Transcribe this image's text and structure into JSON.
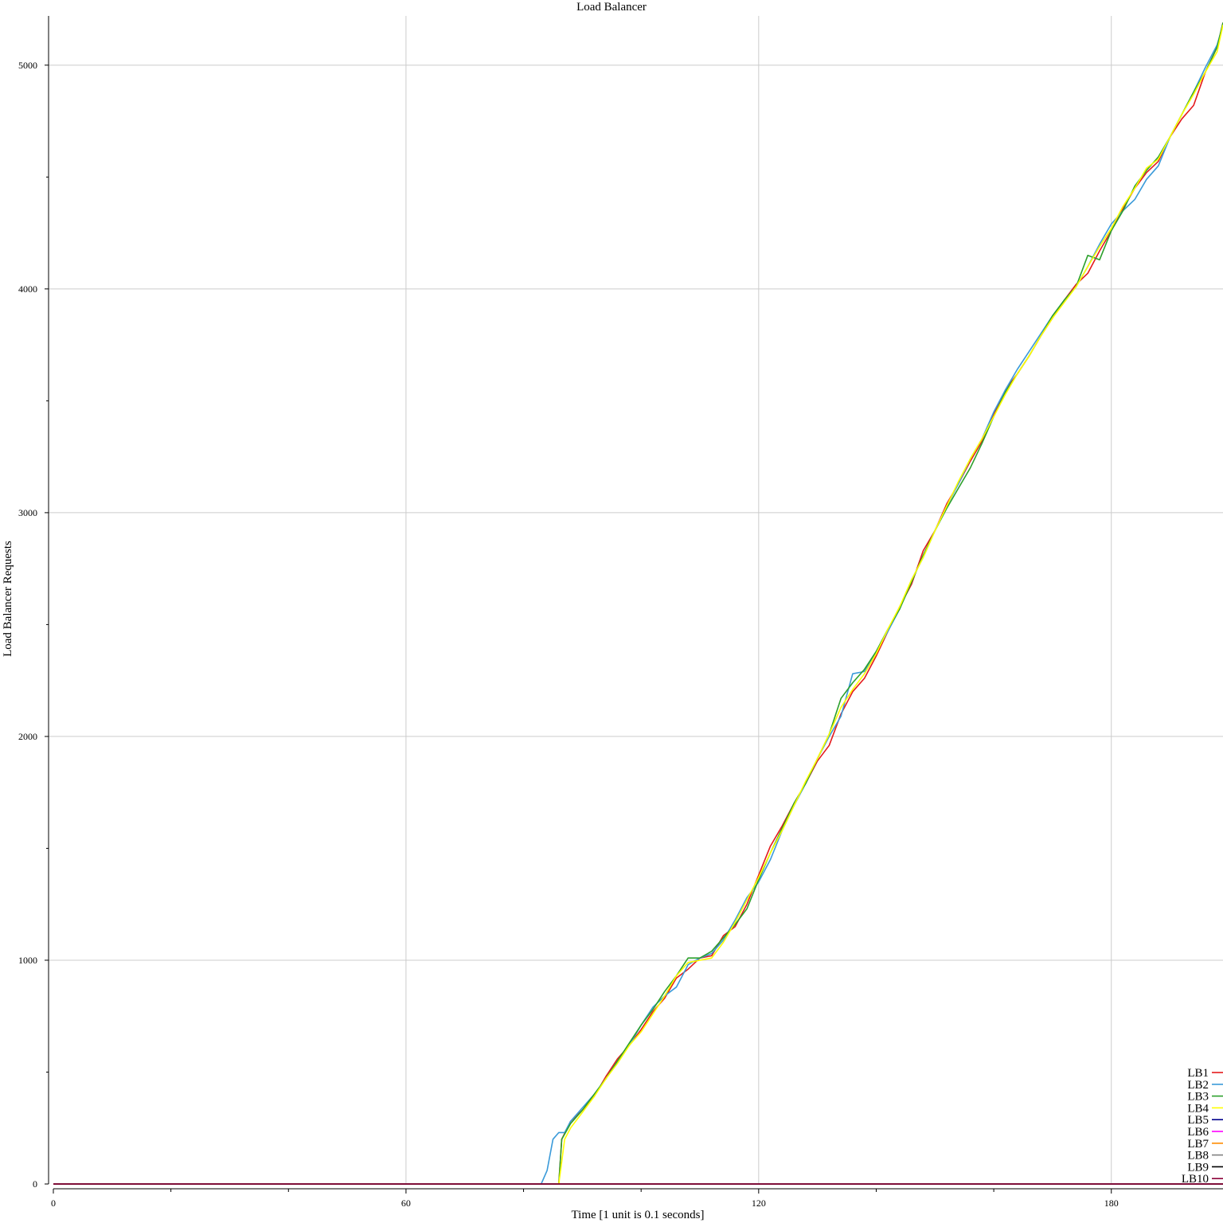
{
  "chart_data": {
    "type": "line",
    "title": "Load Balancer",
    "xlabel": "Time [1 unit is 0.1 seconds]",
    "ylabel": "Load Balancer Requests",
    "xlim": [
      0,
      199
    ],
    "ylim": [
      0,
      5220
    ],
    "xticks": [
      0,
      60,
      120,
      180
    ],
    "xticks_minor": [
      20,
      40,
      80,
      100,
      140,
      160
    ],
    "yticks": [
      0,
      1000,
      2000,
      3000,
      4000,
      5000
    ],
    "yticks_minor": [
      500,
      1500,
      2500,
      3500,
      4500
    ],
    "grid": true,
    "legend_position": "bottom-right",
    "series": [
      {
        "name": "LB1",
        "color": "#e41a1c",
        "points": [
          [
            0,
            0
          ],
          [
            86,
            0
          ],
          [
            86.5,
            200
          ],
          [
            88,
            280
          ],
          [
            90,
            330
          ],
          [
            92,
            390
          ],
          [
            94,
            480
          ],
          [
            96,
            560
          ],
          [
            98,
            620
          ],
          [
            100,
            690
          ],
          [
            102,
            770
          ],
          [
            104,
            830
          ],
          [
            106,
            920
          ],
          [
            108,
            960
          ],
          [
            110,
            1010
          ],
          [
            112,
            1020
          ],
          [
            114,
            1110
          ],
          [
            116,
            1150
          ],
          [
            118,
            1250
          ],
          [
            120,
            1380
          ],
          [
            122,
            1510
          ],
          [
            124,
            1600
          ],
          [
            126,
            1700
          ],
          [
            128,
            1790
          ],
          [
            130,
            1890
          ],
          [
            132,
            1960
          ],
          [
            134,
            2100
          ],
          [
            136,
            2200
          ],
          [
            138,
            2260
          ],
          [
            140,
            2360
          ],
          [
            142,
            2470
          ],
          [
            144,
            2580
          ],
          [
            146,
            2680
          ],
          [
            148,
            2830
          ],
          [
            150,
            2920
          ],
          [
            152,
            3040
          ],
          [
            154,
            3130
          ],
          [
            156,
            3230
          ],
          [
            158,
            3320
          ],
          [
            160,
            3440
          ],
          [
            162,
            3550
          ],
          [
            164,
            3620
          ],
          [
            166,
            3700
          ],
          [
            168,
            3790
          ],
          [
            170,
            3870
          ],
          [
            172,
            3950
          ],
          [
            174,
            4020
          ],
          [
            176,
            4070
          ],
          [
            178,
            4170
          ],
          [
            180,
            4260
          ],
          [
            182,
            4360
          ],
          [
            184,
            4450
          ],
          [
            186,
            4520
          ],
          [
            188,
            4570
          ],
          [
            190,
            4680
          ],
          [
            192,
            4760
          ],
          [
            194,
            4820
          ],
          [
            196,
            4970
          ],
          [
            198,
            5080
          ],
          [
            199,
            5190
          ]
        ]
      },
      {
        "name": "LB2",
        "color": "#3a9ad9",
        "points": [
          [
            0,
            0
          ],
          [
            83,
            0
          ],
          [
            84,
            60
          ],
          [
            85,
            200
          ],
          [
            86,
            230
          ],
          [
            87,
            230
          ],
          [
            88,
            280
          ],
          [
            90,
            340
          ],
          [
            92,
            400
          ],
          [
            94,
            470
          ],
          [
            96,
            550
          ],
          [
            98,
            620
          ],
          [
            100,
            710
          ],
          [
            102,
            790
          ],
          [
            104,
            840
          ],
          [
            106,
            880
          ],
          [
            108,
            980
          ],
          [
            110,
            1010
          ],
          [
            112,
            1030
          ],
          [
            114,
            1090
          ],
          [
            116,
            1180
          ],
          [
            118,
            1280
          ],
          [
            120,
            1350
          ],
          [
            122,
            1450
          ],
          [
            124,
            1580
          ],
          [
            126,
            1690
          ],
          [
            128,
            1790
          ],
          [
            130,
            1900
          ],
          [
            132,
            2000
          ],
          [
            134,
            2090
          ],
          [
            136,
            2280
          ],
          [
            138,
            2290
          ],
          [
            140,
            2380
          ],
          [
            142,
            2470
          ],
          [
            144,
            2570
          ],
          [
            146,
            2700
          ],
          [
            148,
            2800
          ],
          [
            150,
            2920
          ],
          [
            152,
            3030
          ],
          [
            154,
            3130
          ],
          [
            156,
            3240
          ],
          [
            158,
            3330
          ],
          [
            160,
            3450
          ],
          [
            162,
            3550
          ],
          [
            164,
            3640
          ],
          [
            166,
            3720
          ],
          [
            168,
            3800
          ],
          [
            170,
            3880
          ],
          [
            172,
            3950
          ],
          [
            174,
            4010
          ],
          [
            176,
            4100
          ],
          [
            178,
            4200
          ],
          [
            180,
            4290
          ],
          [
            182,
            4350
          ],
          [
            184,
            4400
          ],
          [
            186,
            4490
          ],
          [
            188,
            4550
          ],
          [
            190,
            4680
          ],
          [
            192,
            4780
          ],
          [
            194,
            4880
          ],
          [
            196,
            4990
          ],
          [
            198,
            5090
          ],
          [
            199,
            5180
          ]
        ]
      },
      {
        "name": "LB3",
        "color": "#2ca02c",
        "points": [
          [
            0,
            0
          ],
          [
            86,
            0
          ],
          [
            86.5,
            200
          ],
          [
            88,
            270
          ],
          [
            90,
            330
          ],
          [
            92,
            400
          ],
          [
            94,
            470
          ],
          [
            96,
            550
          ],
          [
            98,
            630
          ],
          [
            100,
            710
          ],
          [
            102,
            780
          ],
          [
            104,
            860
          ],
          [
            106,
            930
          ],
          [
            108,
            1010
          ],
          [
            110,
            1010
          ],
          [
            112,
            1040
          ],
          [
            114,
            1100
          ],
          [
            116,
            1160
          ],
          [
            118,
            1230
          ],
          [
            120,
            1360
          ],
          [
            122,
            1480
          ],
          [
            124,
            1590
          ],
          [
            126,
            1700
          ],
          [
            128,
            1790
          ],
          [
            130,
            1900
          ],
          [
            132,
            2010
          ],
          [
            134,
            2170
          ],
          [
            136,
            2240
          ],
          [
            138,
            2300
          ],
          [
            140,
            2380
          ],
          [
            142,
            2480
          ],
          [
            144,
            2570
          ],
          [
            146,
            2690
          ],
          [
            148,
            2810
          ],
          [
            150,
            2920
          ],
          [
            152,
            3020
          ],
          [
            154,
            3110
          ],
          [
            156,
            3200
          ],
          [
            158,
            3310
          ],
          [
            160,
            3430
          ],
          [
            162,
            3540
          ],
          [
            164,
            3620
          ],
          [
            166,
            3700
          ],
          [
            168,
            3790
          ],
          [
            170,
            3880
          ],
          [
            172,
            3950
          ],
          [
            174,
            4010
          ],
          [
            176,
            4150
          ],
          [
            178,
            4130
          ],
          [
            180,
            4260
          ],
          [
            182,
            4350
          ],
          [
            184,
            4460
          ],
          [
            186,
            4530
          ],
          [
            188,
            4590
          ],
          [
            190,
            4680
          ],
          [
            192,
            4780
          ],
          [
            194,
            4880
          ],
          [
            196,
            4970
          ],
          [
            198,
            5080
          ],
          [
            199,
            5190
          ]
        ]
      },
      {
        "name": "LB4",
        "color": "#ffff00",
        "points": [
          [
            0,
            0
          ],
          [
            86,
            0
          ],
          [
            87,
            200
          ],
          [
            88,
            250
          ],
          [
            90,
            320
          ],
          [
            92,
            390
          ],
          [
            94,
            470
          ],
          [
            96,
            540
          ],
          [
            98,
            620
          ],
          [
            100,
            680
          ],
          [
            102,
            760
          ],
          [
            104,
            840
          ],
          [
            106,
            930
          ],
          [
            108,
            990
          ],
          [
            110,
            1000
          ],
          [
            112,
            1010
          ],
          [
            114,
            1080
          ],
          [
            116,
            1170
          ],
          [
            118,
            1270
          ],
          [
            120,
            1370
          ],
          [
            122,
            1480
          ],
          [
            124,
            1580
          ],
          [
            126,
            1690
          ],
          [
            128,
            1800
          ],
          [
            130,
            1900
          ],
          [
            132,
            2010
          ],
          [
            134,
            2130
          ],
          [
            136,
            2210
          ],
          [
            138,
            2280
          ],
          [
            140,
            2370
          ],
          [
            142,
            2480
          ],
          [
            144,
            2580
          ],
          [
            146,
            2700
          ],
          [
            148,
            2800
          ],
          [
            150,
            2920
          ],
          [
            152,
            3030
          ],
          [
            154,
            3140
          ],
          [
            156,
            3240
          ],
          [
            158,
            3330
          ],
          [
            160,
            3430
          ],
          [
            162,
            3530
          ],
          [
            164,
            3620
          ],
          [
            166,
            3700
          ],
          [
            168,
            3790
          ],
          [
            170,
            3870
          ],
          [
            172,
            3940
          ],
          [
            174,
            4010
          ],
          [
            176,
            4100
          ],
          [
            178,
            4190
          ],
          [
            180,
            4270
          ],
          [
            182,
            4370
          ],
          [
            184,
            4450
          ],
          [
            186,
            4540
          ],
          [
            188,
            4580
          ],
          [
            190,
            4680
          ],
          [
            192,
            4780
          ],
          [
            194,
            4870
          ],
          [
            196,
            4970
          ],
          [
            198,
            5060
          ],
          [
            199,
            5180
          ]
        ]
      },
      {
        "name": "LB5",
        "color": "#00008b",
        "points": [
          [
            0,
            0
          ],
          [
            199,
            0
          ]
        ]
      },
      {
        "name": "LB6",
        "color": "#ff00ff",
        "points": [
          [
            0,
            0
          ],
          [
            199,
            0
          ]
        ]
      },
      {
        "name": "LB7",
        "color": "#ff8c00",
        "points": [
          [
            0,
            0
          ],
          [
            199,
            0
          ]
        ]
      },
      {
        "name": "LB8",
        "color": "#808080",
        "points": [
          [
            0,
            0
          ],
          [
            199,
            0
          ]
        ]
      },
      {
        "name": "LB9",
        "color": "#000000",
        "points": [
          [
            0,
            0
          ],
          [
            199,
            0
          ]
        ]
      },
      {
        "name": "LB10",
        "color": "#8b0038",
        "points": [
          [
            0,
            0
          ],
          [
            199,
            0
          ]
        ]
      }
    ]
  }
}
